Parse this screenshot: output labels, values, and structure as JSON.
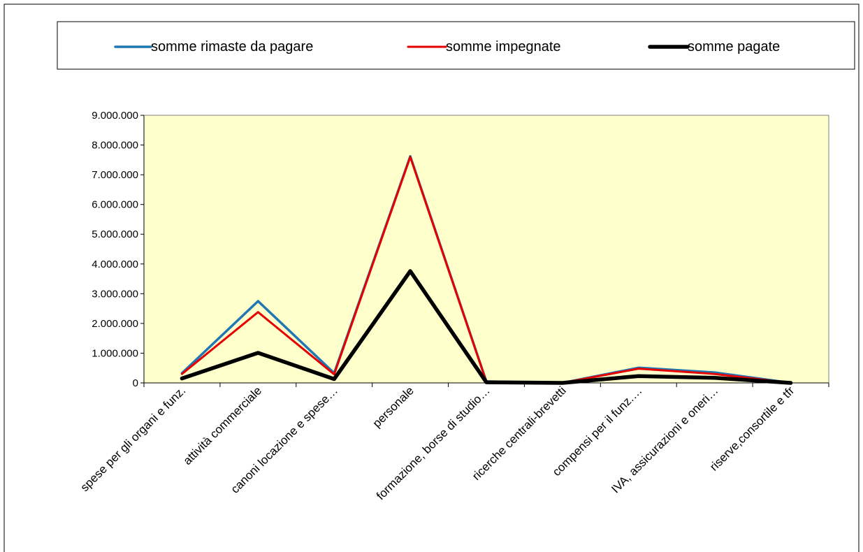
{
  "chart_data": {
    "type": "line",
    "categories": [
      "spese per gli organi e funz.",
      "attività commerciale",
      "canoni locazione e spese…",
      "personale",
      "formazione, borse di studio…",
      "ricerche centrali-brevetti",
      "compensi per il funz.…",
      "IVA, assicurazioni e oneri…",
      "riserve,consortile e tfr"
    ],
    "series": [
      {
        "name": "somme rimaste da pagare",
        "color": "#1f77b4",
        "values": [
          330000,
          2750000,
          330000,
          7620000,
          50000,
          0,
          510000,
          350000,
          0
        ]
      },
      {
        "name": "somme impegnate",
        "color": "#e60000",
        "values": [
          300000,
          2380000,
          290000,
          7600000,
          40000,
          0,
          480000,
          300000,
          0
        ]
      },
      {
        "name": "somme pagate",
        "color": "#000000",
        "values": [
          150000,
          1010000,
          130000,
          3760000,
          20000,
          0,
          230000,
          170000,
          0
        ]
      }
    ],
    "y_ticks": [
      "0",
      "1.000.000",
      "2.000.000",
      "3.000.000",
      "4.000.000",
      "5.000.000",
      "6.000.000",
      "7.000.000",
      "8.000.000",
      "9.000.000"
    ],
    "ylim": [
      0,
      9000000
    ],
    "legend_position": "top",
    "plot_background": "#ffffcc",
    "grid": false
  }
}
